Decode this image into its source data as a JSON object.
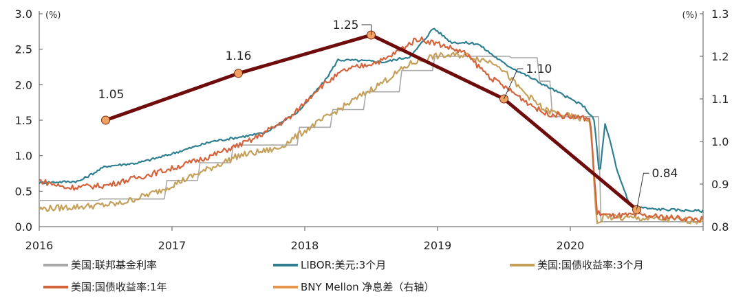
{
  "chart_data": {
    "type": "line",
    "xlabel": "",
    "x_ticks": [
      "2016",
      "2017",
      "2018",
      "2019",
      "2020"
    ],
    "xlim": [
      2016.0,
      2021.0
    ],
    "ylim_left": [
      0.0,
      3.0
    ],
    "ylim_right": [
      0.8,
      1.3
    ],
    "y_ticks_left": [
      "0.0",
      "0.5",
      "1.0",
      "1.5",
      "2.0",
      "2.5",
      "3.0"
    ],
    "y_ticks_right": [
      "0.8",
      "0.9",
      "1.0",
      "1.1",
      "1.2",
      "1.3"
    ],
    "y_unit_left": "(%)",
    "y_unit_right": "(%)",
    "series": [
      {
        "name": "美国:联邦基金利率",
        "axis": "left",
        "color": "#a8a8a8",
        "x": [
          2016.0,
          2016.45,
          2016.95,
          2017.2,
          2017.45,
          2017.95,
          2018.2,
          2018.45,
          2018.72,
          2018.97,
          2019.55,
          2019.75,
          2019.85,
          2020.2,
          2020.22,
          2021.0
        ],
        "y": [
          0.37,
          0.39,
          0.65,
          0.9,
          1.15,
          1.4,
          1.65,
          1.9,
          2.2,
          2.4,
          2.38,
          2.05,
          1.55,
          1.55,
          0.07,
          0.09
        ]
      },
      {
        "name": "LIBOR:美元:3个月",
        "axis": "left",
        "color": "#2e7f8f",
        "x": [
          2016.0,
          2016.3,
          2016.5,
          2016.75,
          2016.95,
          2017.3,
          2017.7,
          2017.95,
          2018.15,
          2018.25,
          2018.4,
          2018.6,
          2018.8,
          2018.97,
          2019.1,
          2019.3,
          2019.5,
          2019.7,
          2019.9,
          2020.1,
          2020.18,
          2020.22,
          2020.26,
          2020.3,
          2020.35,
          2020.45,
          2020.6,
          2021.0
        ],
        "y": [
          0.62,
          0.64,
          0.85,
          0.9,
          1.0,
          1.2,
          1.32,
          1.62,
          2.05,
          2.35,
          2.34,
          2.32,
          2.4,
          2.8,
          2.6,
          2.58,
          2.3,
          2.1,
          1.9,
          1.7,
          1.5,
          0.7,
          1.45,
          1.2,
          0.8,
          0.3,
          0.25,
          0.22
        ]
      },
      {
        "name": "美国:国债收益率:3个月",
        "axis": "left",
        "color": "#c4a05a",
        "x": [
          2016.0,
          2016.3,
          2016.6,
          2016.9,
          2017.2,
          2017.5,
          2017.8,
          2018.0,
          2018.3,
          2018.6,
          2018.8,
          2018.97,
          2019.2,
          2019.45,
          2019.6,
          2019.8,
          2020.0,
          2020.15,
          2020.2,
          2020.25,
          2020.35,
          2020.5,
          2021.0
        ],
        "y": [
          0.25,
          0.28,
          0.32,
          0.5,
          0.75,
          1.0,
          1.1,
          1.35,
          1.7,
          2.05,
          2.3,
          2.4,
          2.42,
          2.3,
          1.98,
          1.65,
          1.55,
          1.5,
          0.0,
          0.15,
          0.12,
          0.12,
          0.08
        ]
      },
      {
        "name": "美国:国债收益率:1年",
        "axis": "left",
        "color": "#d4623b",
        "x": [
          2016.0,
          2016.2,
          2016.5,
          2016.8,
          2017.0,
          2017.3,
          2017.6,
          2017.9,
          2018.1,
          2018.3,
          2018.6,
          2018.85,
          2019.0,
          2019.2,
          2019.4,
          2019.6,
          2019.8,
          2020.0,
          2020.15,
          2020.2,
          2020.3,
          2020.5,
          2021.0
        ],
        "y": [
          0.65,
          0.55,
          0.58,
          0.72,
          0.82,
          1.0,
          1.22,
          1.55,
          1.95,
          2.2,
          2.35,
          2.65,
          2.58,
          2.45,
          2.1,
          1.85,
          1.6,
          1.55,
          1.52,
          0.2,
          0.15,
          0.16,
          0.1
        ]
      },
      {
        "name": "BNY Mellon 净息差（右轴）",
        "axis": "right",
        "color": "#6e0c0c",
        "marker_color": "#f0a060",
        "x": [
          2016.5,
          2017.5,
          2018.5,
          2019.5,
          2020.5
        ],
        "y": [
          1.05,
          1.16,
          1.25,
          1.1,
          0.84
        ],
        "labels": [
          "1.05",
          "1.16",
          "1.25",
          "1.10",
          "0.84"
        ]
      }
    ],
    "legend": {
      "position": "bottom",
      "entries": [
        {
          "label": "美国:联邦基金利率",
          "color": "#a8a8a8"
        },
        {
          "label": "LIBOR:美元:3个月",
          "color": "#2e7f8f"
        },
        {
          "label": "美国:国债收益率:3个月",
          "color": "#c4a05a"
        },
        {
          "label": "美国:国债收益率:1年",
          "color": "#d4623b"
        },
        {
          "label": "BNY Mellon 净息差（右轴）",
          "color": "#e8944a"
        }
      ]
    }
  }
}
